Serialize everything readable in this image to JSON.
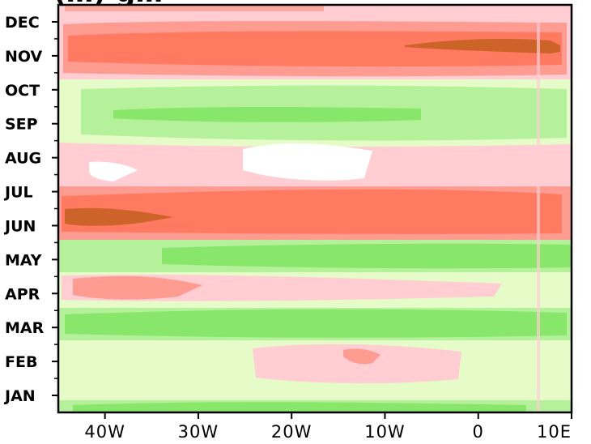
{
  "chart_data": {
    "type": "heatmap",
    "title": "(…) g…",
    "x_ticks": [
      "40W",
      "30W",
      "20W",
      "10W",
      "0",
      "10E"
    ],
    "x_values": [
      -40,
      -30,
      -20,
      -10,
      0,
      10
    ],
    "xlim": [
      -45,
      10
    ],
    "y_ticks": [
      "JAN",
      "FEB",
      "MAR",
      "APR",
      "MAY",
      "JUN",
      "JUL",
      "AUG",
      "SEP",
      "OCT",
      "NOV",
      "DEC"
    ],
    "ylim": [
      0.5,
      12.5
    ],
    "colormap": {
      "strong_negative": "#88e66a",
      "negative": "#b5f09a",
      "weak_negative": "#e6fcc8",
      "neutral": "#ffffff",
      "weak_positive": "#ffcdd2",
      "positive": "#ff9c92",
      "strong_positive": "#ff7a60",
      "extreme_positive": "#cc6328"
    },
    "bands": [
      {
        "month": "JAN",
        "level": "weak_negative"
      },
      {
        "month": "FEB",
        "level": "weak_negative",
        "note_positive_patch": [
          -25,
          -2
        ]
      },
      {
        "month": "MAR",
        "level": "negative"
      },
      {
        "month": "APR",
        "level": "positive"
      },
      {
        "month": "MAY",
        "level": "strong_negative"
      },
      {
        "month": "JUN",
        "level": "strong_positive",
        "extreme_patches": [
          [
            -44,
            -32
          ]
        ]
      },
      {
        "month": "JUL",
        "level": "positive"
      },
      {
        "month": "AUG",
        "level": "weak_positive"
      },
      {
        "month": "SEP",
        "level": "negative"
      },
      {
        "month": "OCT",
        "level": "weak_negative"
      },
      {
        "month": "NOV",
        "level": "strong_positive",
        "extreme_patches": [
          [
            -8,
            9
          ]
        ]
      },
      {
        "month": "DEC",
        "level": "positive"
      }
    ]
  }
}
